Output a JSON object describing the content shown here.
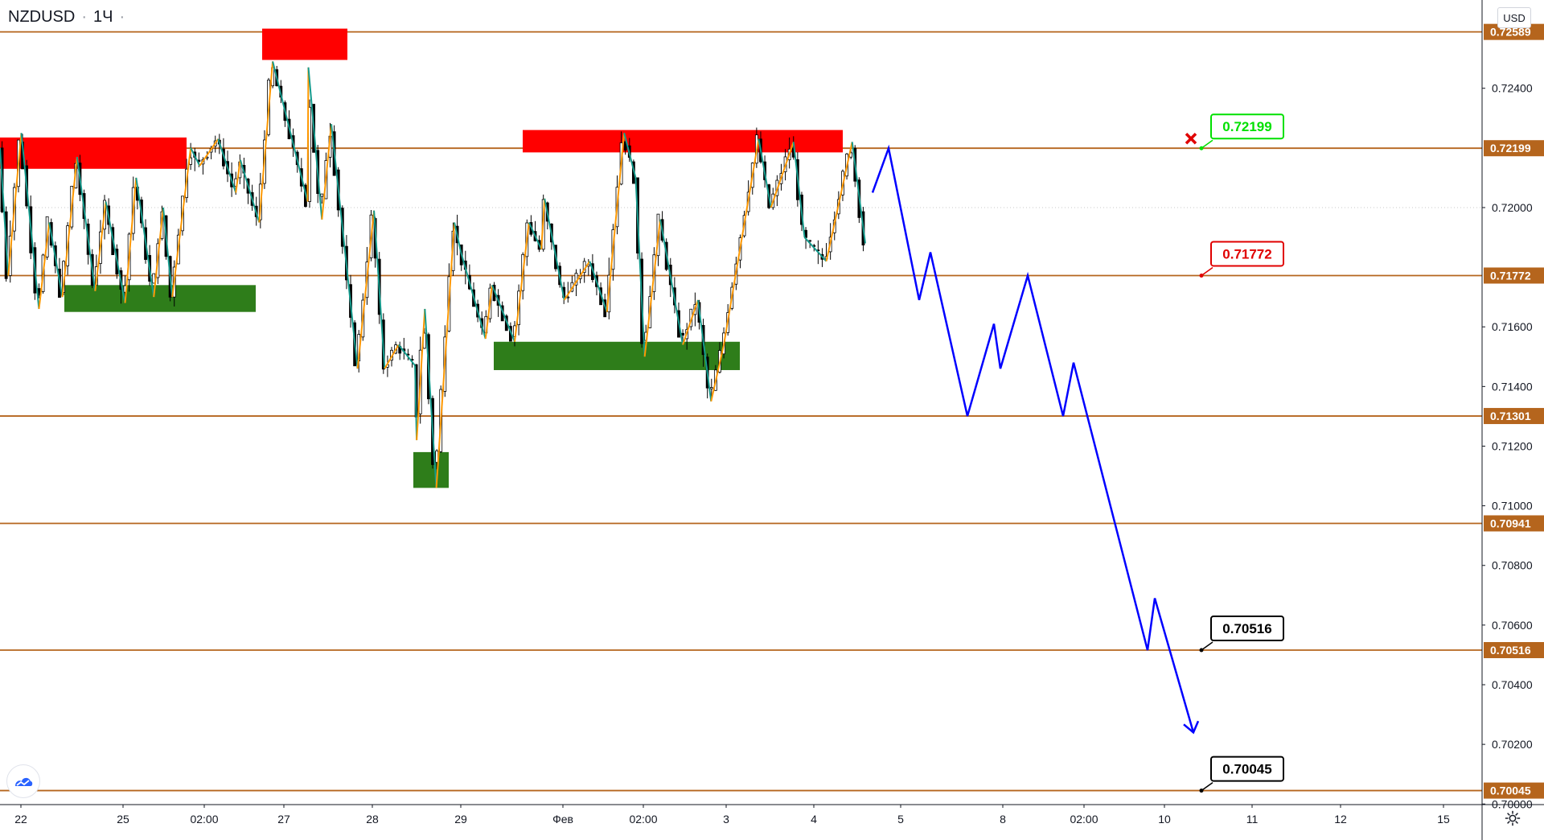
{
  "header": {
    "symbol": "NZDUSD",
    "separator": "·",
    "interval": "1Ч",
    "dot": "·"
  },
  "currency_label": "USD",
  "colors": {
    "level_line": "#b5651d",
    "resistance_zone": "#ff0000",
    "support_zone": "#2e7d1a",
    "zigzag_up": "#ff9800",
    "zigzag_down": "#159a8c",
    "forecast": "#0000ff",
    "label_green": "#00e000",
    "label_red": "#e00000",
    "label_black": "#000000",
    "cross": "#e00000"
  },
  "icons": {
    "logo": "tradingview-logo-icon",
    "settings": "gear-icon",
    "cross": "cross-marker-icon"
  },
  "chart_data": {
    "type": "candlestick",
    "symbol": "NZDUSD",
    "interval": "1Ч",
    "ylim": [
      0.69998,
      0.72696
    ],
    "y_ticks": [
      "0.72400",
      "0.72000",
      "0.71600",
      "0.71400",
      "0.71200",
      "0.71000",
      "0.70800",
      "0.70600",
      "0.70400",
      "0.70200",
      "0.70000"
    ],
    "x_ticks": [
      "22",
      "25",
      "02:00",
      "27",
      "28",
      "29",
      "Фев",
      "02:00",
      "3",
      "4",
      "5",
      "8",
      "02:00",
      "10",
      "11",
      "12",
      "15"
    ],
    "levels": [
      {
        "value": 0.72589,
        "label": "0.72589"
      },
      {
        "value": 0.72199,
        "label": "0.72199"
      },
      {
        "value": 0.71772,
        "label": "0.71772"
      },
      {
        "value": 0.71301,
        "label": "0.71301"
      },
      {
        "value": 0.70941,
        "label": "0.70941"
      },
      {
        "value": 0.70516,
        "label": "0.70516"
      },
      {
        "value": 0.70045,
        "label": "0.70045"
      }
    ],
    "target_labels": [
      {
        "value": 0.72199,
        "text": "0.72199",
        "style": "green"
      },
      {
        "value": 0.71772,
        "text": "0.71772",
        "style": "red"
      },
      {
        "value": 0.70516,
        "text": "0.70516",
        "style": "black"
      },
      {
        "value": 0.70045,
        "text": "0.70045",
        "style": "black"
      }
    ],
    "zones": [
      {
        "type": "resistance",
        "top": 0.72235,
        "bottom": 0.7213
      },
      {
        "type": "support",
        "top": 0.7174,
        "bottom": 0.7165
      },
      {
        "type": "resistance",
        "top": 0.726,
        "bottom": 0.72495
      },
      {
        "type": "support",
        "top": 0.7118,
        "bottom": 0.7106
      },
      {
        "type": "resistance",
        "top": 0.7226,
        "bottom": 0.72185
      },
      {
        "type": "support",
        "top": 0.7155,
        "bottom": 0.71455
      }
    ],
    "zigzag": [
      [
        0,
        0.722
      ],
      [
        20,
        0.71772
      ],
      [
        52,
        0.7225
      ],
      [
        95,
        0.7166
      ],
      [
        120,
        0.7195
      ],
      [
        152,
        0.717
      ],
      [
        188,
        0.7217
      ],
      [
        232,
        0.7172
      ],
      [
        258,
        0.7202
      ],
      [
        305,
        0.7168
      ],
      [
        332,
        0.721
      ],
      [
        375,
        0.717
      ],
      [
        398,
        0.72
      ],
      [
        420,
        0.717
      ],
      [
        465,
        0.722
      ],
      [
        487,
        0.7214
      ],
      [
        532,
        0.7223
      ],
      [
        575,
        0.7205
      ],
      [
        586,
        0.7216
      ],
      [
        632,
        0.7195
      ],
      [
        665,
        0.7249
      ],
      [
        750,
        0.7202
      ],
      [
        752,
        0.7247
      ],
      [
        785,
        0.7196
      ],
      [
        808,
        0.7228
      ],
      [
        872,
        0.7146
      ],
      [
        912,
        0.7199
      ],
      [
        938,
        0.7146
      ],
      [
        972,
        0.7154
      ],
      [
        1012,
        0.7147
      ],
      [
        1016,
        0.7122
      ],
      [
        1036,
        0.7166
      ],
      [
        1064,
        0.7106
      ],
      [
        1108,
        0.7195
      ],
      [
        1124,
        0.7185
      ],
      [
        1184,
        0.7156
      ],
      [
        1200,
        0.7174
      ],
      [
        1255,
        0.7155
      ],
      [
        1290,
        0.7195
      ],
      [
        1320,
        0.7186
      ],
      [
        1328,
        0.7203
      ],
      [
        1376,
        0.7169
      ],
      [
        1438,
        0.7182
      ],
      [
        1480,
        0.7165
      ],
      [
        1522,
        0.7225
      ],
      [
        1550,
        0.721
      ],
      [
        1572,
        0.715
      ],
      [
        1610,
        0.7196
      ],
      [
        1665,
        0.7154
      ],
      [
        1702,
        0.7169
      ],
      [
        1734,
        0.7135
      ],
      [
        1765,
        0.7154
      ],
      [
        1850,
        0.7223
      ],
      [
        1880,
        0.72
      ],
      [
        1935,
        0.7222
      ],
      [
        1962,
        0.719
      ],
      [
        2015,
        0.7182
      ],
      [
        2078,
        0.7222
      ],
      [
        2110,
        0.7188
      ]
    ],
    "forecast_path": [
      [
        0.7205
      ],
      [
        0.72199
      ],
      [
        0.7169
      ],
      [
        0.7185
      ],
      [
        0.71301
      ],
      [
        0.7161
      ],
      [
        0.7146
      ],
      [
        0.71772
      ],
      [
        0.71301
      ],
      [
        0.7148
      ],
      [
        0.70516
      ],
      [
        0.7069
      ],
      [
        0.7024
      ]
    ]
  }
}
